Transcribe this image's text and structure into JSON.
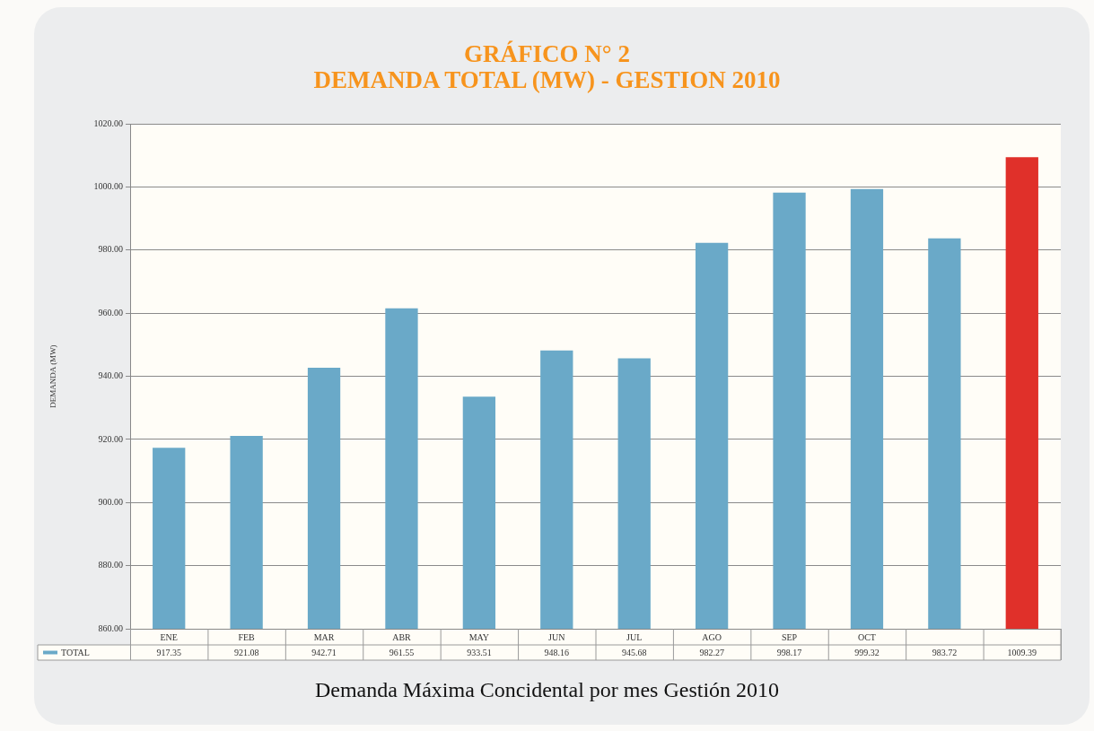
{
  "chart_data": {
    "type": "bar",
    "title": "GRÁFICO N° 2",
    "subtitle": "DEMANDA TOTAL (MW) - GESTION 2010",
    "ylabel": "DEMANDA (MW)",
    "categories": [
      "ENE",
      "FEB",
      "MAR",
      "ABR",
      "MAY",
      "JUN",
      "JUL",
      "AGO",
      "SEP",
      "OCT",
      null,
      null
    ],
    "series": [
      {
        "name": "TOTAL",
        "color": "#6aa9c8",
        "colors": [
          "#6aa9c8",
          "#6aa9c8",
          "#6aa9c8",
          "#6aa9c8",
          "#6aa9c8",
          "#6aa9c8",
          "#6aa9c8",
          "#6aa9c8",
          "#6aa9c8",
          "#6aa9c8",
          "#6aa9c8",
          "#e0302a"
        ],
        "values": [
          917.35,
          921.08,
          942.71,
          961.55,
          933.51,
          948.16,
          945.68,
          982.27,
          998.17,
          999.32,
          983.72,
          1009.39
        ]
      }
    ],
    "ylim": [
      860,
      1020
    ],
    "yticks": [
      {
        "value": 860,
        "label": "860.00"
      },
      {
        "value": 880,
        "label": "880.00"
      },
      {
        "value": 900,
        "label": "900.00"
      },
      {
        "value": 920,
        "label": "920.00"
      },
      {
        "value": 940,
        "label": "940.00"
      },
      {
        "value": 960,
        "label": "960.00"
      },
      {
        "value": 980,
        "label": "980.00"
      },
      {
        "value": 1000,
        "label": "1000.00"
      },
      {
        "value": 1020,
        "label": "1020.00"
      }
    ],
    "grid": "y",
    "legend": "bottom left",
    "data_labels": true,
    "annotations": [
      "Demanda Máxima Concidental por mes Gestión 2010"
    ]
  }
}
